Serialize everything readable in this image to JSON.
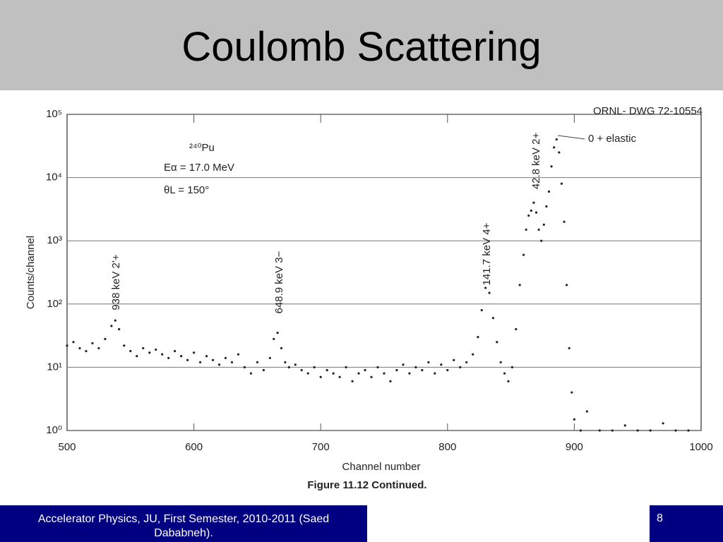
{
  "header": {
    "title": "Coulomb Scattering"
  },
  "footer": {
    "text": "Accelerator Physics, JU, First Semester, 2010-2011 (Saed Dababneh).",
    "page": "8"
  },
  "chart_data": {
    "type": "scatter",
    "log_y": true,
    "grid": true,
    "color": "#222222",
    "x_label": "Channel number",
    "y_label": "Counts/channel",
    "caption": "Figure 11.12  Continued.",
    "annotations": [
      "ORNL- DWG 72-10554",
      "²⁴⁰Pu",
      "Eα = 17.0 MeV",
      "θL = 150°",
      "938 keV 2'+",
      "648.9 keV 3−",
      "141.7 keV 4+",
      "42.8 keV 2+",
      "0 + elastic"
    ],
    "xlim": [
      500,
      1000
    ],
    "xticks": [
      500,
      600,
      700,
      800,
      900,
      1000
    ],
    "ylim": [
      1,
      100000
    ],
    "yticks": [
      {
        "value": 1,
        "label": "10⁰"
      },
      {
        "value": 10,
        "label": "10¹"
      },
      {
        "value": 100,
        "label": "10²"
      },
      {
        "value": 1000,
        "label": "10³"
      },
      {
        "value": 10000,
        "label": "10⁴"
      },
      {
        "value": 100000,
        "label": "10⁵"
      }
    ],
    "x": [
      500,
      505,
      510,
      515,
      520,
      525,
      530,
      535,
      538,
      541,
      545,
      550,
      555,
      560,
      565,
      570,
      575,
      580,
      585,
      590,
      595,
      600,
      605,
      610,
      615,
      620,
      625,
      630,
      635,
      640,
      645,
      650,
      655,
      660,
      663,
      666,
      669,
      672,
      675,
      680,
      685,
      690,
      695,
      700,
      705,
      710,
      715,
      720,
      725,
      730,
      735,
      740,
      745,
      750,
      755,
      760,
      765,
      770,
      775,
      780,
      785,
      790,
      795,
      800,
      805,
      810,
      815,
      820,
      824,
      827,
      830,
      833,
      836,
      839,
      842,
      845,
      848,
      851,
      854,
      857,
      860,
      862,
      864,
      866,
      868,
      870,
      872,
      874,
      876,
      878,
      880,
      882,
      884,
      886,
      888,
      890,
      892,
      894,
      896,
      898,
      900,
      905,
      910,
      920,
      930,
      940,
      950,
      960,
      970,
      980,
      990
    ],
    "values": [
      22,
      25,
      20,
      18,
      24,
      20,
      28,
      45,
      55,
      40,
      22,
      18,
      15,
      20,
      17,
      19,
      16,
      14,
      18,
      15,
      13,
      17,
      12,
      15,
      13,
      11,
      14,
      12,
      16,
      10,
      8,
      12,
      9,
      14,
      28,
      35,
      20,
      12,
      10,
      11,
      9,
      8,
      10,
      7,
      9,
      8,
      7,
      10,
      6,
      8,
      9,
      7,
      10,
      8,
      6,
      9,
      11,
      8,
      10,
      9,
      12,
      8,
      11,
      9,
      13,
      10,
      12,
      16,
      30,
      80,
      180,
      150,
      60,
      25,
      12,
      8,
      6,
      10,
      40,
      200,
      600,
      1500,
      2500,
      3000,
      4000,
      2800,
      1500,
      1000,
      1800,
      3500,
      6000,
      15000,
      30000,
      40000,
      25000,
      8000,
      2000,
      200,
      20,
      4,
      1.5,
      1,
      2,
      1,
      1,
      1.2,
      1,
      1,
      1.3,
      1,
      1
    ]
  }
}
